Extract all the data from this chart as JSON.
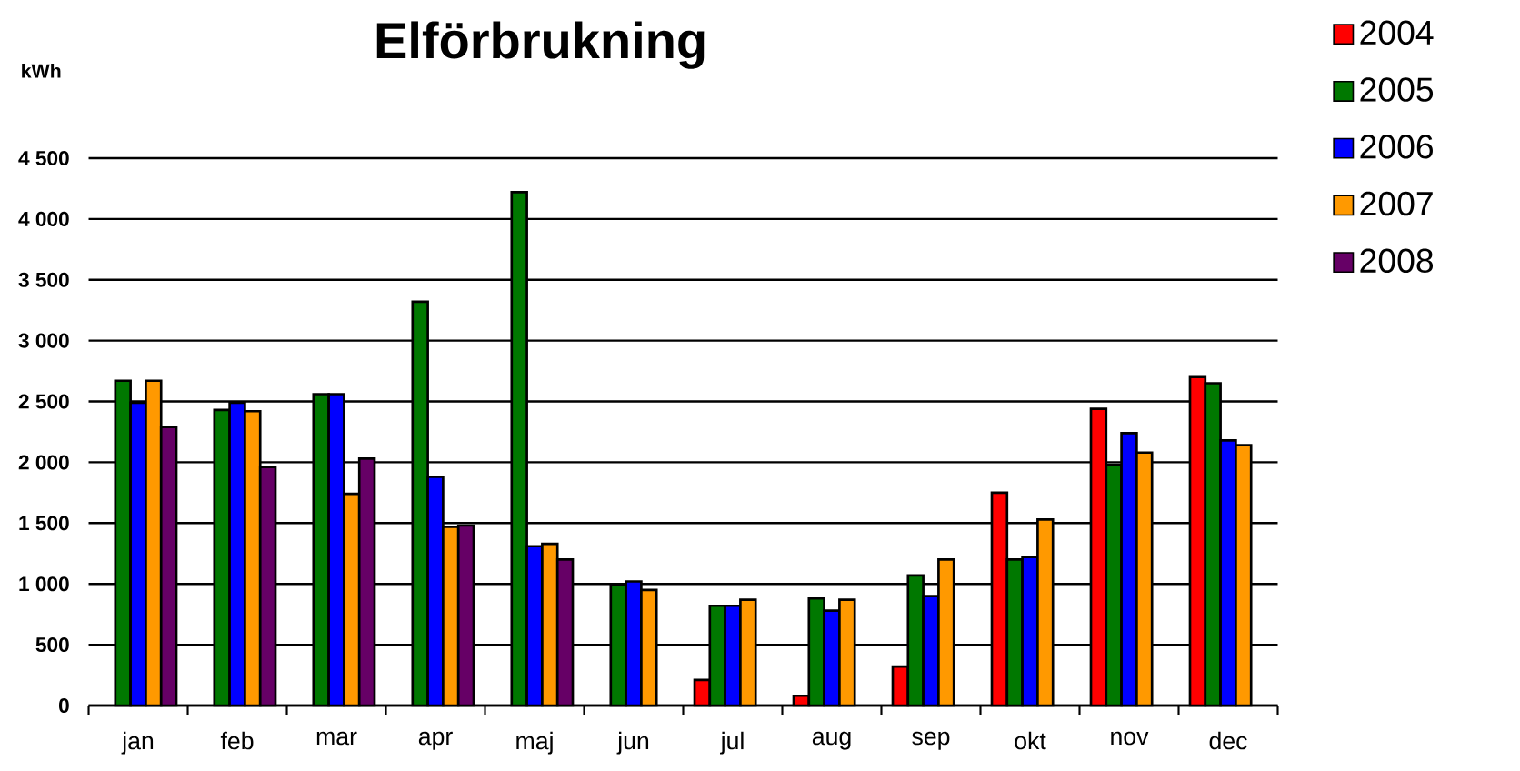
{
  "chart_data": {
    "type": "bar",
    "title": "Elförbrukning",
    "ylabel": "kWh",
    "categories": [
      "jan",
      "feb",
      "mar",
      "apr",
      "maj",
      "jun",
      "jul",
      "aug",
      "sep",
      "okt",
      "nov",
      "dec"
    ],
    "series": [
      {
        "name": "2004",
        "color": "#ff0000",
        "values": [
          null,
          null,
          null,
          null,
          null,
          null,
          210,
          80,
          320,
          1750,
          2440,
          2700
        ]
      },
      {
        "name": "2005",
        "color": "#007800",
        "values": [
          2670,
          2430,
          2560,
          3320,
          4220,
          990,
          820,
          880,
          1070,
          1200,
          1980,
          2650
        ]
      },
      {
        "name": "2006",
        "color": "#0000ff",
        "values": [
          2490,
          2490,
          2560,
          1880,
          1310,
          1020,
          820,
          780,
          900,
          1220,
          2240,
          2180
        ]
      },
      {
        "name": "2007",
        "color": "#ff9900",
        "values": [
          2670,
          2420,
          1740,
          1470,
          1330,
          950,
          870,
          870,
          1200,
          1530,
          2080,
          2140
        ]
      },
      {
        "name": "2008",
        "color": "#660066",
        "values": [
          2290,
          1960,
          2030,
          1480,
          1200,
          null,
          null,
          null,
          null,
          null,
          null,
          null
        ]
      }
    ],
    "ylim": [
      0,
      4500
    ],
    "yticks": [
      {
        "value": 0,
        "label": "0"
      },
      {
        "value": 500,
        "label": "500"
      },
      {
        "value": 1000,
        "label": "1 000"
      },
      {
        "value": 1500,
        "label": "1 500"
      },
      {
        "value": 2000,
        "label": "2 000"
      },
      {
        "value": 2500,
        "label": "2 500"
      },
      {
        "value": 3000,
        "label": "3 000"
      },
      {
        "value": 3500,
        "label": "3 500"
      },
      {
        "value": 4000,
        "label": "4 000"
      },
      {
        "value": 4500,
        "label": "4 500"
      }
    ],
    "grid": "y",
    "legend": "top right"
  }
}
